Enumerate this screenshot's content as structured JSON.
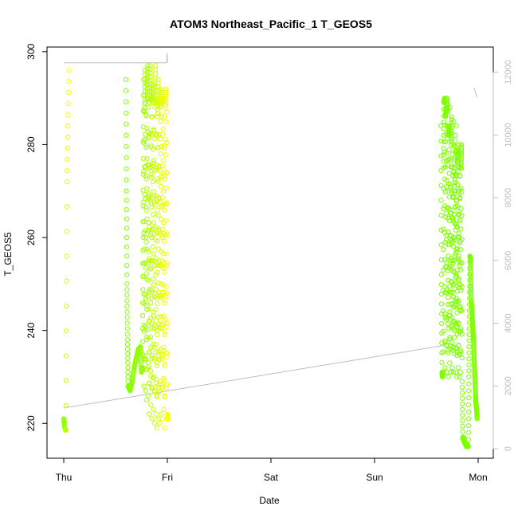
{
  "chart_data": {
    "type": "scatter",
    "title": "ATOM3 Northeast_Pacific_1 T_GEOS5",
    "xlabel": "Date",
    "ylabel": "T_GEOS5",
    "x_ticks": [
      "Thu",
      "Fri",
      "Sat",
      "Sun",
      "Mon"
    ],
    "x_range_days": [
      -0.1,
      4.1
    ],
    "ylim": [
      212.5,
      301
    ],
    "y_ticks": [
      220,
      240,
      260,
      280,
      300
    ],
    "right_axis": {
      "ylim": [
        -300,
        12800
      ],
      "ticks": [
        0,
        2000,
        4000,
        6000,
        8000,
        10000,
        12000
      ],
      "color": "#bebebe"
    },
    "grid": false,
    "series": [
      {
        "color_start": "#7fff00",
        "color_end": "#ffff00",
        "segments": [
          {
            "t": [
              0.0,
              0.01,
              0.02,
              0.03,
              0.05
            ],
            "y": [
              221,
              219,
              218.5,
              272,
              296
            ]
          },
          {
            "t": [
              0.6,
              0.605,
              0.61,
              0.615,
              0.62,
              0.64,
              0.66,
              0.68,
              0.7,
              0.72,
              0.74,
              0.75,
              0.76,
              0.765,
              0.77,
              0.775,
              0.78,
              0.785,
              0.79,
              0.795,
              0.8,
              0.805,
              0.81,
              0.815,
              0.82,
              0.825,
              0.83,
              0.835,
              0.84,
              0.845,
              0.85,
              0.855,
              0.86,
              0.865,
              0.87,
              0.875,
              0.88,
              0.885,
              0.89,
              0.895,
              0.9,
              0.905,
              0.91,
              0.915,
              0.92,
              0.925,
              0.93,
              0.935,
              0.94,
              0.945,
              0.95,
              0.955,
              0.96,
              0.965,
              0.97,
              0.975,
              0.98,
              0.985,
              0.99,
              0.995,
              1.0,
              1.005,
              1.01
            ],
            "y": [
              294,
              270,
              250,
              238,
              228,
              227,
              229,
              232,
              234,
              236,
              236.5,
              231,
              232,
              260,
              294,
              228,
              287,
              296,
              227,
              293,
              225,
              290,
              297,
              226,
              288,
              222,
              289,
              297,
              224,
              286,
              221,
              289,
              293,
              223,
              290,
              220,
              288,
              297,
              222,
              289,
              219,
              286,
              294,
              221,
              289,
              220,
              288,
              292,
              222,
              286,
              221,
              289,
              290,
              223,
              286,
              219,
              288,
              292,
              221,
              287,
              222,
              221,
              221
            ]
          }
        ]
      },
      {
        "color_start": "#7fff00",
        "color_end": "#7fff00",
        "segments": [
          {
            "t": [
              3.64,
              3.645,
              3.65,
              3.655,
              3.66,
              3.665,
              3.67,
              3.675,
              3.68,
              3.685,
              3.69,
              3.695,
              3.7,
              3.705,
              3.71,
              3.715,
              3.72,
              3.725,
              3.73,
              3.735,
              3.74,
              3.745,
              3.75,
              3.755,
              3.76,
              3.765,
              3.77,
              3.775,
              3.78,
              3.785,
              3.79,
              3.795,
              3.8,
              3.805,
              3.81,
              3.815,
              3.82,
              3.825,
              3.83,
              3.835,
              3.84,
              3.845,
              3.85,
              3.855,
              3.86,
              3.865,
              3.87,
              3.875,
              3.88,
              3.885,
              3.89,
              3.895,
              3.9,
              3.905,
              3.91,
              3.915,
              3.92,
              3.925,
              3.93,
              3.935,
              3.94,
              3.945,
              3.95,
              3.955,
              3.96,
              3.965,
              3.97,
              3.975,
              3.98,
              3.985,
              3.99
            ],
            "y": [
              284,
              252,
              231,
              230,
              231,
              275,
              289,
              290,
              232,
              286,
              288,
              231,
              290,
              287,
              230,
              282,
              284,
              233,
              288,
              231,
              280,
              286,
              232,
              278,
              231,
              285,
              235,
              270,
              282,
              231,
              284,
              230,
              276,
              279,
              232,
              280,
              230,
              278,
              231,
              275,
              280,
              229,
              217,
              216.5,
              217,
              216,
              216,
              215.5,
              215.5,
              215,
              215,
              215.5,
              215,
              215,
              230,
              243,
              256,
              255,
              250,
              246,
              244,
              242,
              240,
              238,
              235,
              232,
              229,
              226,
              224,
              223,
              221
            ]
          }
        ]
      }
    ],
    "line_series": {
      "color": "#bebebe",
      "axis": "right",
      "points": [
        {
          "t": 0.0,
          "v": 12300
        },
        {
          "t": 0.995,
          "v": 12300
        },
        {
          "t": 0.999,
          "v": 12600
        },
        {
          "t": 1.0,
          "v": 12300
        },
        {
          "t": 0.0,
          "v": 1300
        },
        {
          "t": 3.68,
          "v": 3300
        },
        {
          "t": 3.99,
          "v": 11200
        },
        {
          "t": 3.96,
          "v": 11500
        }
      ]
    }
  }
}
